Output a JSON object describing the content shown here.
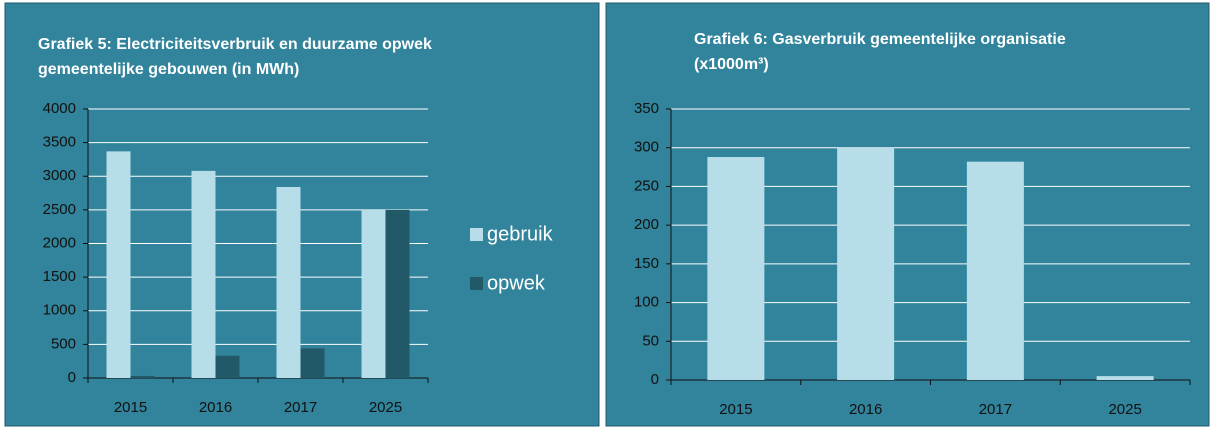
{
  "chart_data": [
    {
      "type": "bar",
      "title": "Grafiek 5: Electriciteitsverbruik en duurzame opwek gemeentelijke gebouwen (in MWh)",
      "categories": [
        "2015",
        "2016",
        "2017",
        "2025"
      ],
      "series": [
        {
          "name": "gebruik",
          "color": "#b7dde8",
          "values": [
            3370,
            3080,
            2840,
            2500
          ]
        },
        {
          "name": "opwek",
          "color": "#215968",
          "values": [
            30,
            330,
            440,
            2500
          ]
        }
      ],
      "ylim": [
        0,
        4000
      ],
      "yticks": [
        0,
        500,
        1000,
        1500,
        2000,
        2500,
        3000,
        3500,
        4000
      ],
      "grid": true,
      "legend": "right"
    },
    {
      "type": "bar",
      "title": "Grafiek 6: Gasverbruik gemeentelijke organisatie (x1000m³)",
      "categories": [
        "2015",
        "2016",
        "2017",
        "2025"
      ],
      "series": [
        {
          "name": "gebruik",
          "color": "#b7dde8",
          "values": [
            288,
            300,
            282,
            5
          ]
        }
      ],
      "ylim": [
        0,
        350
      ],
      "yticks": [
        0,
        50,
        100,
        150,
        200,
        250,
        300,
        350
      ],
      "grid": true
    }
  ]
}
